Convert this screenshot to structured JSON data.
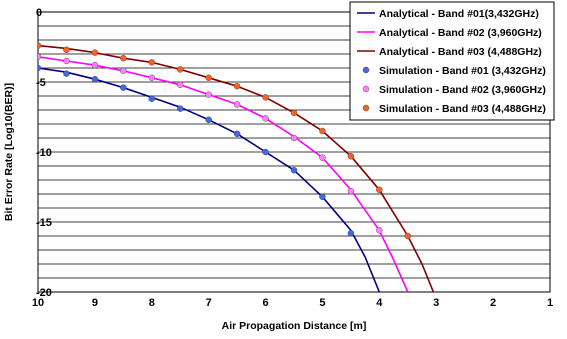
{
  "chart_data": {
    "type": "line",
    "xlabel": "Air Propagation Distance [m]",
    "ylabel": "Bit Error Rate [Log10(BER)]",
    "xlim": [
      10,
      1
    ],
    "ylim": [
      -20,
      0
    ],
    "x_reversed": true,
    "x_ticks": [
      "10",
      "9",
      "8",
      "7",
      "6",
      "5",
      "4",
      "3",
      "2",
      "1"
    ],
    "y_ticks": [
      "0",
      "-5",
      "-10",
      "-15",
      "-20"
    ],
    "grid": "horizontal",
    "legend_position": "top-right",
    "series": [
      {
        "name": "Analytical - Band #01(3,432GHz)",
        "kind": "line",
        "color": "#000080",
        "x": [
          10,
          9.5,
          9,
          8.5,
          8,
          7.5,
          7,
          6.5,
          6,
          5.5,
          5,
          4.5,
          4.25,
          4.0
        ],
        "y": [
          -4.0,
          -4.3,
          -4.8,
          -5.4,
          -6.1,
          -6.8,
          -7.7,
          -8.7,
          -10.0,
          -11.3,
          -13.2,
          -15.6,
          -17.5,
          -20.0
        ]
      },
      {
        "name": "Analytical - Band #02 (3,960GHz)",
        "kind": "line",
        "color": "#ff00ff",
        "x": [
          10,
          9.5,
          9,
          8.5,
          8,
          7.5,
          7,
          6.5,
          6,
          5.5,
          5,
          4.5,
          4.0,
          3.75,
          3.5
        ],
        "y": [
          -3.2,
          -3.5,
          -3.8,
          -4.2,
          -4.7,
          -5.2,
          -5.9,
          -6.6,
          -7.6,
          -8.9,
          -10.4,
          -12.7,
          -15.6,
          -17.7,
          -20.0
        ]
      },
      {
        "name": "Analytical - Band #03 (4,488GHz)",
        "kind": "line",
        "color": "#800000",
        "x": [
          10,
          9.5,
          9,
          8.5,
          8,
          7.5,
          7,
          6.5,
          6,
          5.5,
          5,
          4.5,
          4.0,
          3.5,
          3.25,
          3.05
        ],
        "y": [
          -2.4,
          -2.6,
          -2.9,
          -3.3,
          -3.6,
          -4.1,
          -4.7,
          -5.3,
          -6.1,
          -7.2,
          -8.5,
          -10.3,
          -12.7,
          -16.0,
          -18.0,
          -20.0
        ]
      },
      {
        "name": "Simulation - Band #01 (3,432GHz)",
        "kind": "scatter",
        "color": "#4169e1",
        "x": [
          10,
          9.5,
          9,
          8.5,
          8,
          7.5,
          7,
          6.5,
          6,
          5.5,
          5,
          4.5
        ],
        "y": [
          -4.0,
          -4.4,
          -4.8,
          -5.4,
          -6.2,
          -6.9,
          -7.7,
          -8.7,
          -10.0,
          -11.3,
          -13.2,
          -15.8
        ]
      },
      {
        "name": "Simulation - Band #02 (3,960GHz)",
        "kind": "scatter",
        "color": "#ff80ff",
        "x": [
          10,
          9.5,
          9,
          8.5,
          8,
          7.5,
          7,
          6.5,
          6,
          5.5,
          5,
          4.5,
          4
        ],
        "y": [
          -3.2,
          -3.5,
          -3.8,
          -4.2,
          -4.7,
          -5.2,
          -5.9,
          -6.6,
          -7.6,
          -9.0,
          -10.4,
          -12.8,
          -15.6
        ]
      },
      {
        "name": "Simulation - Band #03 (4,488GHz)",
        "kind": "scatter",
        "color": "#ff6020",
        "x": [
          10,
          9.5,
          9,
          8.5,
          8,
          7.5,
          7,
          6.5,
          6,
          5.5,
          5,
          4.5,
          4,
          3.5
        ],
        "y": [
          -2.4,
          -2.7,
          -2.9,
          -3.3,
          -3.6,
          -4.1,
          -4.7,
          -5.3,
          -6.1,
          -7.2,
          -8.5,
          -10.3,
          -12.7,
          -16.0
        ]
      }
    ]
  }
}
